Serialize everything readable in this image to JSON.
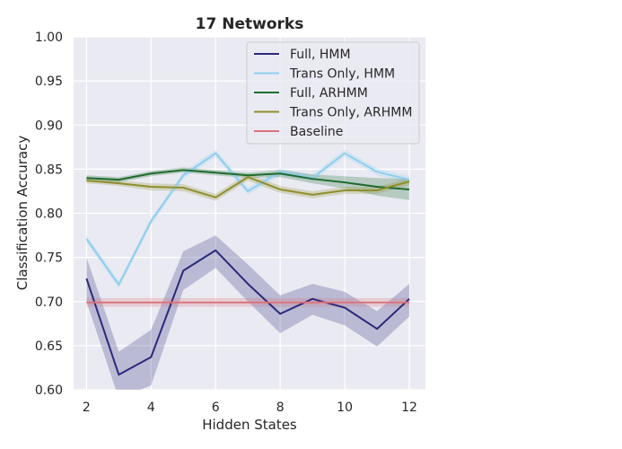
{
  "chart_data": {
    "type": "line",
    "title": "17 Networks",
    "xlabel": "Hidden States",
    "ylabel": "Classification Accuracy",
    "xlim": [
      1.6,
      12.5
    ],
    "ylim": [
      0.6,
      1.0
    ],
    "xticks": [
      2,
      4,
      6,
      8,
      10,
      12
    ],
    "yticks": [
      "0.60",
      "0.65",
      "0.70",
      "0.75",
      "0.80",
      "0.85",
      "0.90",
      "0.95",
      "1.00"
    ],
    "grid": true,
    "legend_position": "top-right",
    "x": [
      2,
      3,
      4,
      5,
      6,
      7,
      8,
      9,
      10,
      11,
      12
    ],
    "series": [
      {
        "name": "Full, HMM",
        "color": "#2c2a7a",
        "values": [
          0.726,
          0.617,
          0.637,
          0.735,
          0.758,
          0.72,
          0.686,
          0.703,
          0.693,
          0.669,
          0.703
        ],
        "lower": [
          0.7,
          0.59,
          0.605,
          0.713,
          0.738,
          0.7,
          0.664,
          0.685,
          0.673,
          0.649,
          0.683
        ],
        "upper": [
          0.75,
          0.643,
          0.668,
          0.757,
          0.775,
          0.742,
          0.707,
          0.72,
          0.711,
          0.689,
          0.72
        ]
      },
      {
        "name": "Trans Only, HMM",
        "color": "#8ecfee",
        "values": [
          0.771,
          0.719,
          0.791,
          0.843,
          0.868,
          0.825,
          0.847,
          0.84,
          0.868,
          0.847,
          0.838
        ],
        "lower": [
          0.767,
          0.715,
          0.787,
          0.839,
          0.864,
          0.821,
          0.843,
          0.836,
          0.864,
          0.843,
          0.834
        ],
        "upper": [
          0.775,
          0.723,
          0.795,
          0.847,
          0.872,
          0.829,
          0.851,
          0.844,
          0.872,
          0.851,
          0.842
        ]
      },
      {
        "name": "Full, ARHMM",
        "color": "#1e6b2e",
        "values": [
          0.84,
          0.838,
          0.845,
          0.849,
          0.846,
          0.843,
          0.845,
          0.839,
          0.835,
          0.83,
          0.827
        ],
        "lower": [
          0.837,
          0.835,
          0.842,
          0.846,
          0.843,
          0.84,
          0.841,
          0.834,
          0.828,
          0.82,
          0.815
        ],
        "upper": [
          0.843,
          0.841,
          0.848,
          0.852,
          0.849,
          0.846,
          0.849,
          0.844,
          0.842,
          0.84,
          0.839
        ]
      },
      {
        "name": "Trans Only, ARHMM",
        "color": "#8f8f2e",
        "values": [
          0.837,
          0.834,
          0.83,
          0.829,
          0.818,
          0.841,
          0.827,
          0.821,
          0.826,
          0.826,
          0.836
        ],
        "lower": [
          0.834,
          0.831,
          0.826,
          0.825,
          0.814,
          0.837,
          0.823,
          0.817,
          0.822,
          0.822,
          0.832
        ],
        "upper": [
          0.84,
          0.837,
          0.834,
          0.833,
          0.822,
          0.845,
          0.831,
          0.825,
          0.83,
          0.83,
          0.84
        ]
      },
      {
        "name": "Baseline",
        "color": "#d9737a",
        "values": [
          0.699,
          0.699,
          0.699,
          0.699,
          0.699,
          0.699,
          0.699,
          0.699,
          0.699,
          0.699,
          0.699
        ],
        "lower": [
          0.694,
          0.694,
          0.694,
          0.694,
          0.694,
          0.694,
          0.694,
          0.694,
          0.694,
          0.694,
          0.694
        ],
        "upper": [
          0.704,
          0.704,
          0.704,
          0.704,
          0.704,
          0.704,
          0.704,
          0.704,
          0.704,
          0.704,
          0.704
        ]
      }
    ]
  }
}
